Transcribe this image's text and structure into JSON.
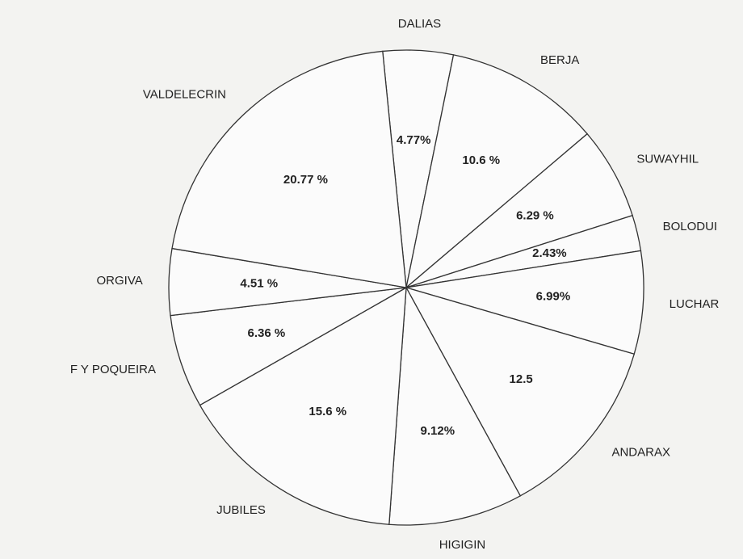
{
  "chart_data": {
    "type": "pie",
    "categories": [
      "DALIAS",
      "BERJA",
      "SUWAYHIL",
      "BOLODUI",
      "LUCHAR",
      "ANDARAX",
      "HIGIGIN",
      "JUBILES",
      "F Y POQUEIRA",
      "ORGIVA",
      "VALDELECRIN"
    ],
    "values": [
      4.77,
      10.6,
      6.29,
      2.43,
      6.99,
      12.5,
      9.12,
      15.6,
      6.36,
      4.51,
      20.77
    ],
    "value_labels": [
      "4.77%",
      "10.6 %",
      "6.29 %",
      "2.43%",
      "6.99%",
      "12.5",
      "9.12%",
      "15.6 %",
      "6.36 %",
      "4.51 %",
      "20.77 %"
    ],
    "color": "#fbfbfb"
  }
}
